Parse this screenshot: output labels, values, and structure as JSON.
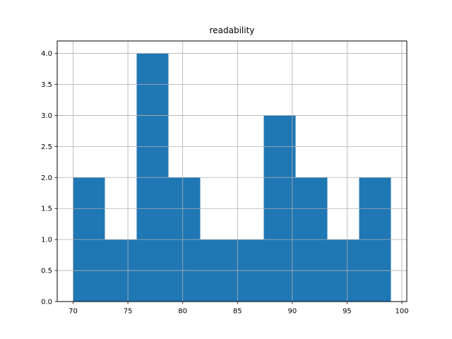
{
  "figure": {
    "background": "#ffffff"
  },
  "chart_data": {
    "type": "histogram",
    "title": "readability",
    "xlabel": "",
    "ylabel": "",
    "bar_color": "#1f77b4",
    "grid_color": "#b0b0b0",
    "axis_color": "#000000",
    "grid": true,
    "grid_above_bars": true,
    "bin_edges": [
      70.0,
      72.9,
      75.8,
      78.7,
      81.6,
      84.5,
      87.4,
      90.3,
      93.2,
      96.1,
      99.0
    ],
    "counts": [
      2,
      1,
      4,
      2,
      1,
      1,
      3,
      2,
      1,
      2
    ],
    "xticks": [
      70,
      75,
      80,
      85,
      90,
      95,
      100
    ],
    "xtick_labels": [
      "70",
      "75",
      "80",
      "85",
      "90",
      "95",
      "100"
    ],
    "yticks": [
      0.0,
      0.5,
      1.0,
      1.5,
      2.0,
      2.5,
      3.0,
      3.5,
      4.0
    ],
    "ytick_labels": [
      "0.0",
      "0.5",
      "1.0",
      "1.5",
      "2.0",
      "2.5",
      "3.0",
      "3.5",
      "4.0"
    ],
    "xlim": [
      68.55,
      100.45
    ],
    "ylim": [
      0,
      4.2
    ]
  }
}
